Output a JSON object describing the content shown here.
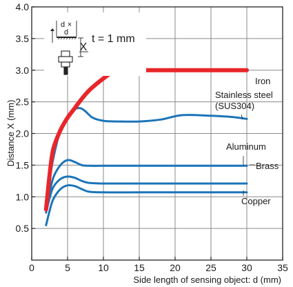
{
  "chart_data": {
    "type": "line",
    "title": "",
    "xlabel": "Side length of sensing object: d (mm)",
    "ylabel": "Distance X (mm)",
    "xlim": [
      0,
      35
    ],
    "ylim": [
      0,
      4.0
    ],
    "x_ticks": [
      "0",
      "5",
      "10",
      "15",
      "20",
      "25",
      "30",
      "35"
    ],
    "y_ticks": [
      "0.5",
      "1.0",
      "1.5",
      "2.0",
      "2.5",
      "3.0",
      "3.5",
      "4.0"
    ],
    "grid": true,
    "legend": "none",
    "inset": {
      "condition_label": "t = 1 mm",
      "symbol_d": "d",
      "symbol_x": "X"
    },
    "colors": {
      "iron": "#e8262a",
      "other": "#1a74b8"
    },
    "series": [
      {
        "name": "Iron",
        "color": "#e8262a",
        "x": [
          2,
          2.5,
          3,
          4,
          5,
          6,
          7,
          8,
          9,
          10,
          11,
          12,
          15,
          20,
          25,
          30
        ],
        "y": [
          0.8,
          1.35,
          1.75,
          2.05,
          2.25,
          2.4,
          2.55,
          2.68,
          2.78,
          2.87,
          2.95,
          3.0,
          3.0,
          3.0,
          3.0,
          3.0
        ]
      },
      {
        "name": "Stainless steel (SUS304)",
        "color": "#1a74b8",
        "x": [
          2,
          2.5,
          3,
          4,
          5,
          6,
          6.8,
          7.5,
          8.5,
          10,
          12,
          15,
          18,
          21,
          25,
          28,
          30
        ],
        "y": [
          0.78,
          1.25,
          1.6,
          2.05,
          2.25,
          2.38,
          2.4,
          2.35,
          2.25,
          2.2,
          2.19,
          2.19,
          2.22,
          2.29,
          2.28,
          2.26,
          2.23
        ]
      },
      {
        "name": "Aluminum",
        "color": "#1a74b8",
        "x": [
          2,
          2.5,
          3,
          4,
          5,
          6,
          7,
          8,
          10,
          15,
          20,
          25,
          30
        ],
        "y": [
          0.8,
          1.05,
          1.3,
          1.5,
          1.58,
          1.55,
          1.5,
          1.49,
          1.49,
          1.49,
          1.49,
          1.49,
          1.49
        ]
      },
      {
        "name": "Brass",
        "color": "#1a74b8",
        "x": [
          2,
          2.5,
          3,
          4,
          5,
          6,
          7,
          8,
          10,
          15,
          20,
          25,
          30
        ],
        "y": [
          0.75,
          0.98,
          1.15,
          1.28,
          1.32,
          1.3,
          1.25,
          1.22,
          1.21,
          1.21,
          1.21,
          1.21,
          1.21
        ]
      },
      {
        "name": "Copper",
        "color": "#1a74b8",
        "x": [
          2,
          2.5,
          3,
          4,
          5,
          6,
          7,
          8,
          10,
          15,
          20,
          25,
          30
        ],
        "y": [
          0.55,
          0.78,
          0.96,
          1.12,
          1.18,
          1.17,
          1.12,
          1.08,
          1.07,
          1.07,
          1.07,
          1.07,
          1.07
        ]
      }
    ],
    "annotations": [
      {
        "text": "Iron",
        "series": "Iron"
      },
      {
        "text": "Stainless steel",
        "series": "Stainless steel (SUS304)"
      },
      {
        "text": "(SUS304)",
        "series": "Stainless steel (SUS304)"
      },
      {
        "text": "Aluminum",
        "series": "Aluminum"
      },
      {
        "text": "Brass",
        "series": "Brass"
      },
      {
        "text": "Copper",
        "series": "Copper"
      }
    ]
  }
}
